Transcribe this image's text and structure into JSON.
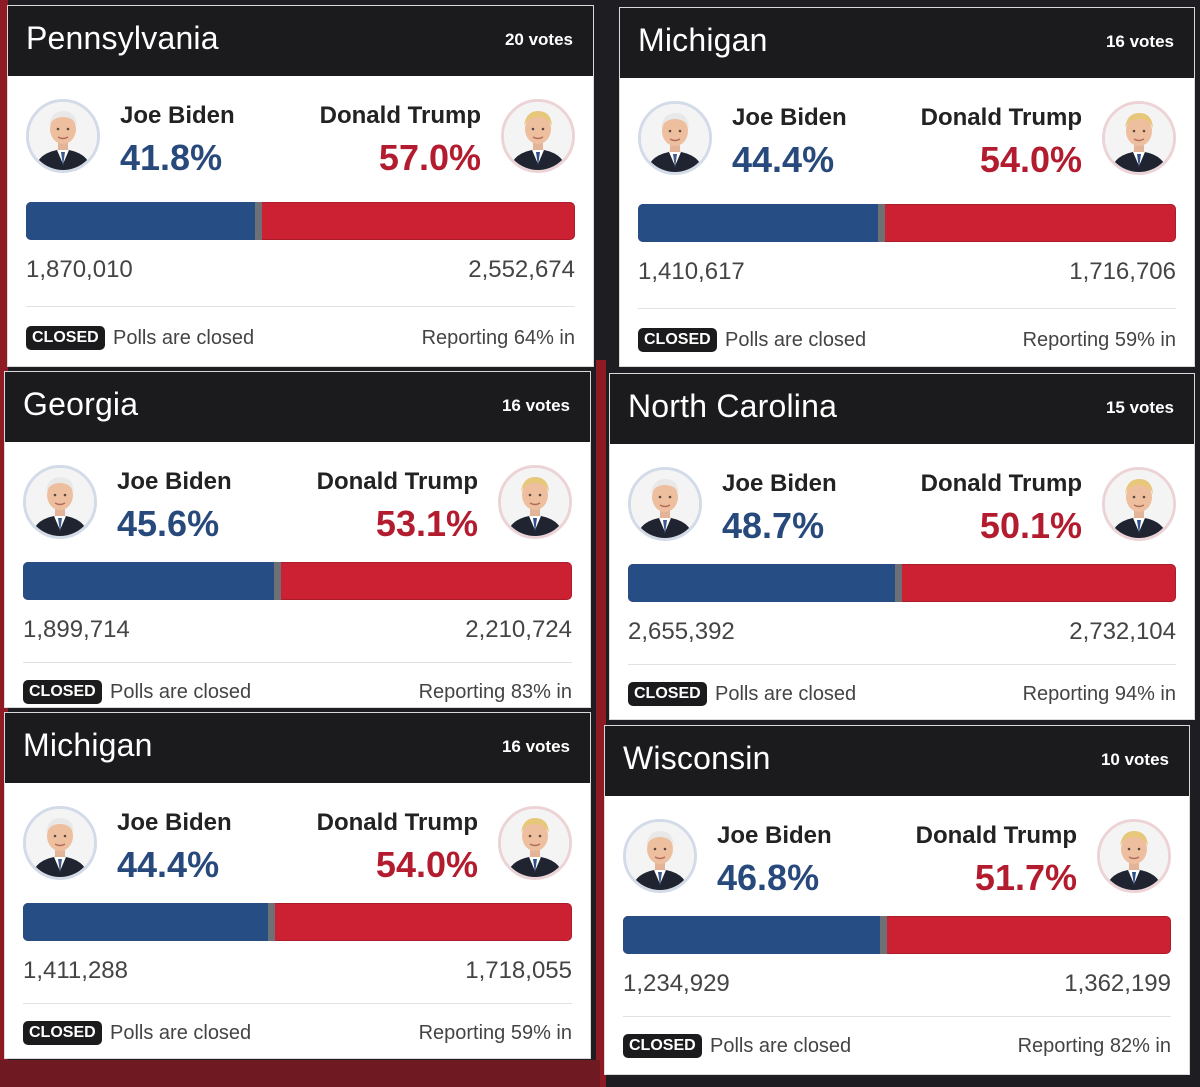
{
  "candidates": {
    "dem_name": "Joe Biden",
    "rep_name": "Donald Trump"
  },
  "colors": {
    "dem": "#27497c",
    "rep": "#b31c2e",
    "header": "#1b1b1d"
  },
  "icons": {
    "dem_portrait": "biden-portrait-icon",
    "rep_portrait": "trump-portrait-icon"
  },
  "cards": [
    {
      "state": "Pennsylvania",
      "votes": "20 votes",
      "dem_pct": "41.8%",
      "rep_pct": "57.0%",
      "dem_share": 0.423,
      "dem_count": "1,870,010",
      "rep_count": "2,552,674",
      "closed": "CLOSED",
      "status": "Polls are closed",
      "reporting": "Reporting 64% in"
    },
    {
      "state": "Michigan",
      "votes": "16 votes",
      "dem_pct": "44.4%",
      "rep_pct": "54.0%",
      "dem_share": 0.451,
      "dem_count": "1,410,617",
      "rep_count": "1,716,706",
      "closed": "CLOSED",
      "status": "Polls are closed",
      "reporting": "Reporting 59% in"
    },
    {
      "state": "Georgia",
      "votes": "16 votes",
      "dem_pct": "45.6%",
      "rep_pct": "53.1%",
      "dem_share": 0.462,
      "dem_count": "1,899,714",
      "rep_count": "2,210,724",
      "closed": "CLOSED",
      "status": "Polls are closed",
      "reporting": "Reporting 83% in"
    },
    {
      "state": "North Carolina",
      "votes": "15 votes",
      "dem_pct": "48.7%",
      "rep_pct": "50.1%",
      "dem_share": 0.493,
      "dem_count": "2,655,392",
      "rep_count": "2,732,104",
      "closed": "CLOSED",
      "status": "Polls are closed",
      "reporting": "Reporting 94% in"
    },
    {
      "state": "Michigan",
      "votes": "16 votes",
      "dem_pct": "44.4%",
      "rep_pct": "54.0%",
      "dem_share": 0.451,
      "dem_count": "1,411,288",
      "rep_count": "1,718,055",
      "closed": "CLOSED",
      "status": "Polls are closed",
      "reporting": "Reporting 59% in"
    },
    {
      "state": "Wisconsin",
      "votes": "10 votes",
      "dem_pct": "46.8%",
      "rep_pct": "51.7%",
      "dem_share": 0.475,
      "dem_count": "1,234,929",
      "rep_count": "1,362,199",
      "closed": "CLOSED",
      "status": "Polls are closed",
      "reporting": "Reporting 82% in"
    }
  ]
}
